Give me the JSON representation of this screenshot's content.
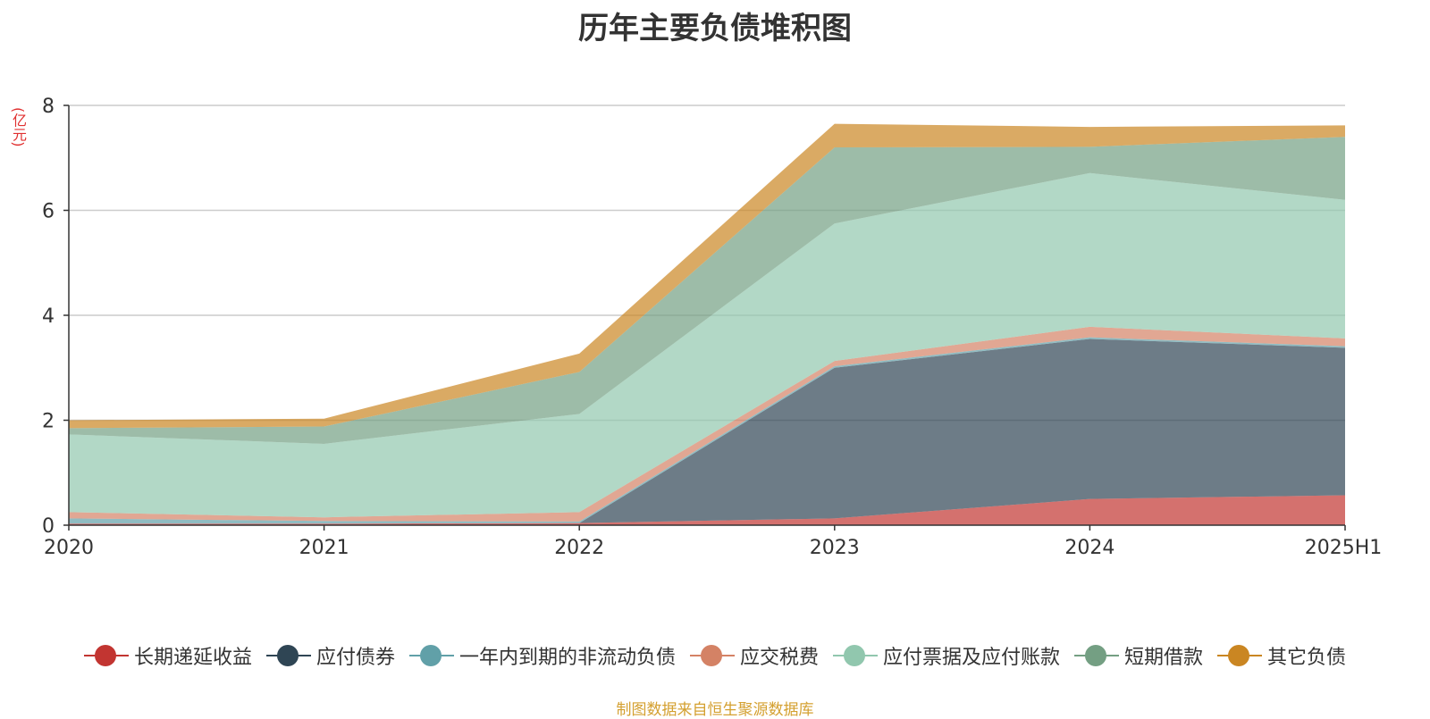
{
  "chart_data": {
    "type": "area",
    "stacked": true,
    "title": "历年主要负债堆积图",
    "ylabel": "(亿元)",
    "categories": [
      "2020",
      "2021",
      "2022",
      "2023",
      "2024",
      "2025H1"
    ],
    "ylim": [
      0,
      8
    ],
    "yticks": [
      0,
      2,
      4,
      6,
      8
    ],
    "grid": true,
    "legend_position": "bottom",
    "series": [
      {
        "name": "长期递延收益",
        "color": "#c23531",
        "values": [
          0.03,
          0.03,
          0.04,
          0.13,
          0.5,
          0.57
        ]
      },
      {
        "name": "应付债券",
        "color": "#2f4554",
        "values": [
          0.0,
          0.0,
          0.0,
          2.87,
          3.05,
          2.81
        ]
      },
      {
        "name": "一年内到期的非流动负债",
        "color": "#61a0a8",
        "values": [
          0.1,
          0.05,
          0.03,
          0.03,
          0.03,
          0.03
        ]
      },
      {
        "name": "应交税费",
        "color": "#d48265",
        "values": [
          0.12,
          0.07,
          0.18,
          0.1,
          0.2,
          0.15
        ]
      },
      {
        "name": "应付票据及应付账款",
        "color": "#91c7ae",
        "values": [
          1.48,
          1.4,
          1.87,
          2.62,
          2.93,
          2.64
        ]
      },
      {
        "name": "短期借款",
        "color": "#749f83",
        "values": [
          0.12,
          0.33,
          0.8,
          1.45,
          0.5,
          1.2
        ]
      },
      {
        "name": "其它负债",
        "color": "#ca8622",
        "values": [
          0.15,
          0.15,
          0.35,
          0.45,
          0.38,
          0.22
        ]
      }
    ]
  },
  "source_note": "制图数据来自恒生聚源数据库"
}
